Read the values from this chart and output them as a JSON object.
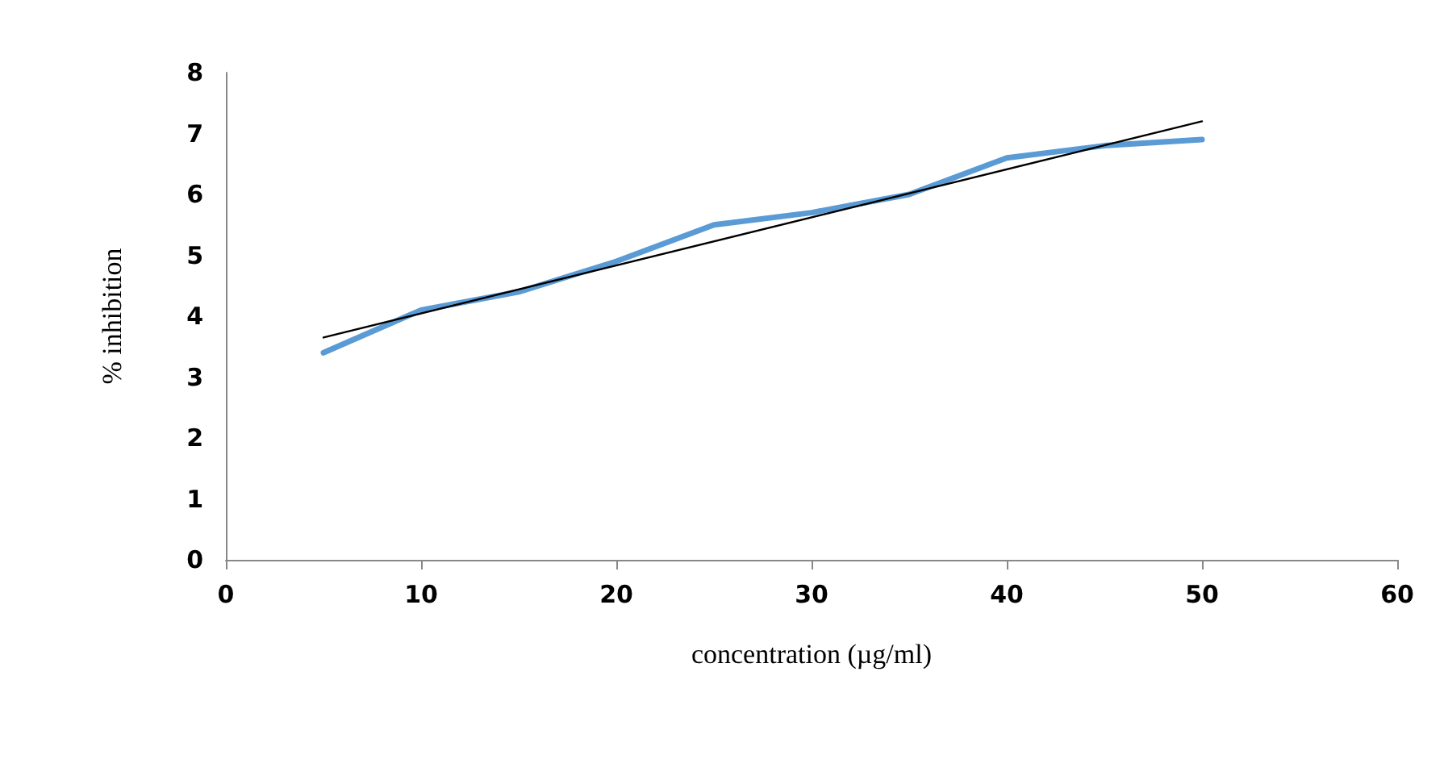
{
  "chart_data": {
    "type": "line",
    "xlabel": "concentration (µg/ml)",
    "ylabel": "% inhibition",
    "x": [
      5,
      10,
      15,
      20,
      25,
      30,
      35,
      40,
      45,
      50
    ],
    "series": [
      {
        "color": "#5b9bd5",
        "values": [
          3.4,
          4.1,
          4.4,
          4.9,
          5.5,
          5.7,
          6.0,
          6.6,
          6.8,
          6.9
        ]
      },
      {
        "color": "#000000",
        "x": [
          5,
          50
        ],
        "values": [
          3.65,
          7.2
        ]
      }
    ],
    "xlim": [
      0,
      60
    ],
    "xticks": [
      0,
      10,
      20,
      30,
      40,
      50,
      60
    ],
    "ylim": [
      0,
      8
    ],
    "yticks": [
      0,
      1,
      2,
      3,
      4,
      5,
      6,
      7,
      8
    ],
    "grid": false,
    "marker": "none",
    "line_style": "solid"
  }
}
